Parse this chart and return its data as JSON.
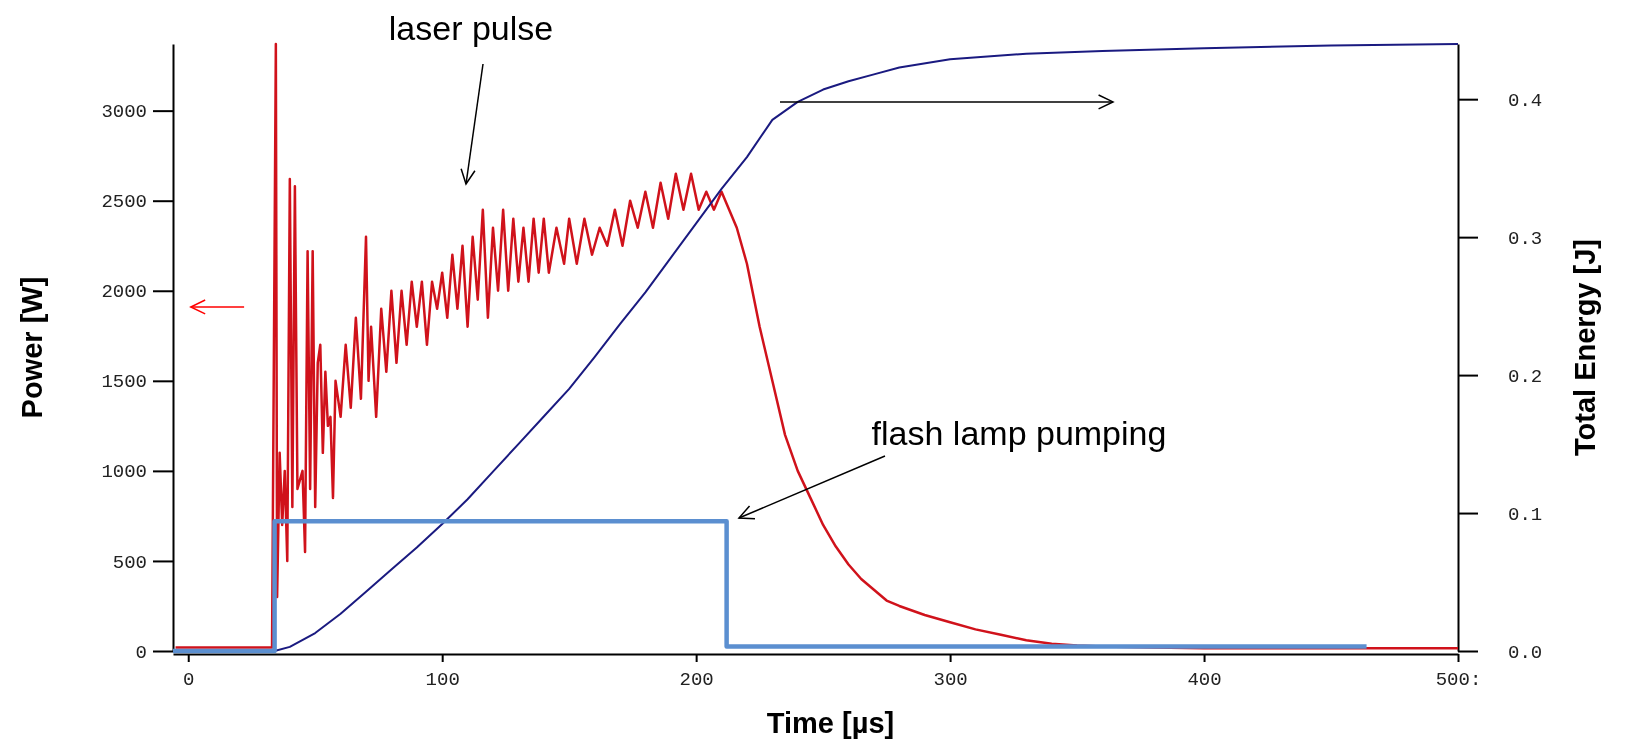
{
  "chart_data": {
    "type": "line",
    "xlabel": "Time [µs]",
    "ylabel": "Power [W]",
    "y2label": "Total Energy [J]",
    "xlim": [
      -6,
      500
    ],
    "xticks": [
      0,
      100,
      200,
      300,
      400,
      {
        "value": 500,
        "label": "500:"
      }
    ],
    "ylim": [
      0,
      3370
    ],
    "yticks": [
      0,
      500,
      1000,
      1500,
      2000,
      2500,
      3000
    ],
    "y2lim": [
      0,
      0.44
    ],
    "y2ticks": [
      {
        "value": 0,
        "label": "0.0"
      },
      0.1,
      0.2,
      0.3,
      0.4
    ],
    "annotations": [
      "laser pulse",
      "flash lamp pumping"
    ],
    "series": [
      {
        "color": "#d0121b",
        "x": [
          -5,
          33,
          34.5,
          35,
          36,
          37,
          38,
          39,
          40,
          41,
          42,
          43,
          45,
          46,
          47,
          48,
          49,
          50,
          51,
          52,
          53,
          54,
          55,
          56,
          57,
          58,
          60,
          62,
          64,
          66,
          68,
          70,
          71,
          72,
          74,
          76,
          78,
          80,
          82,
          84,
          86,
          88,
          90,
          92,
          94,
          96,
          98,
          100,
          102,
          104,
          106,
          108,
          110,
          112,
          114,
          116,
          118,
          120,
          122,
          124,
          126,
          128,
          130,
          132,
          134,
          136,
          138,
          140,
          142,
          145,
          148,
          150,
          153,
          156,
          159,
          162,
          165,
          168,
          171,
          174,
          177,
          180,
          183,
          186,
          189,
          192,
          195,
          198,
          201,
          204,
          207,
          210,
          213,
          216,
          220,
          225,
          230,
          235,
          240,
          245,
          250,
          255,
          260,
          265,
          270,
          275,
          280,
          290,
          300,
          310,
          320,
          330,
          340,
          350,
          360,
          380,
          400,
          500
        ],
        "values": [
          20,
          20,
          3370,
          300,
          1100,
          700,
          1000,
          500,
          2620,
          800,
          2580,
          900,
          1000,
          550,
          2220,
          900,
          2220,
          800,
          1600,
          1700,
          1100,
          1550,
          1250,
          1300,
          850,
          1500,
          1300,
          1700,
          1350,
          1850,
          1400,
          2300,
          1500,
          1800,
          1300,
          1900,
          1550,
          2000,
          1600,
          2000,
          1700,
          2050,
          1800,
          2050,
          1700,
          2050,
          1900,
          2100,
          1850,
          2200,
          1900,
          2250,
          1800,
          2300,
          1950,
          2450,
          1850,
          2350,
          2000,
          2450,
          2000,
          2400,
          2050,
          2350,
          2050,
          2400,
          2100,
          2400,
          2100,
          2350,
          2150,
          2400,
          2150,
          2400,
          2200,
          2350,
          2250,
          2450,
          2250,
          2500,
          2350,
          2550,
          2350,
          2600,
          2400,
          2650,
          2450,
          2650,
          2450,
          2550,
          2450,
          2550,
          2450,
          2350,
          2150,
          1800,
          1500,
          1200,
          1000,
          850,
          700,
          580,
          480,
          400,
          340,
          280,
          250,
          200,
          160,
          120,
          90,
          60,
          40,
          30,
          25,
          20,
          15,
          15
        ]
      },
      {
        "color": "#1a1a80",
        "axis": "y2",
        "x": [
          34,
          40,
          50,
          60,
          70,
          80,
          90,
          100,
          110,
          120,
          130,
          140,
          150,
          160,
          170,
          180,
          190,
          200,
          210,
          220,
          230,
          240,
          250,
          260,
          270,
          280,
          300,
          330,
          360,
          400,
          450,
          500
        ],
        "values": [
          0,
          0.003,
          0.013,
          0.027,
          0.043,
          0.059,
          0.075,
          0.092,
          0.11,
          0.13,
          0.15,
          0.17,
          0.19,
          0.213,
          0.237,
          0.26,
          0.285,
          0.31,
          0.335,
          0.358,
          0.385,
          0.398,
          0.407,
          0.413,
          0.418,
          0.423,
          0.429,
          0.433,
          0.435,
          0.437,
          0.439,
          0.44
        ]
      },
      {
        "type": "step",
        "color": "#5b8fd0",
        "x": [
          -6,
          34,
          212,
          464
        ],
        "values": [
          0,
          720,
          25,
          25
        ]
      }
    ]
  }
}
